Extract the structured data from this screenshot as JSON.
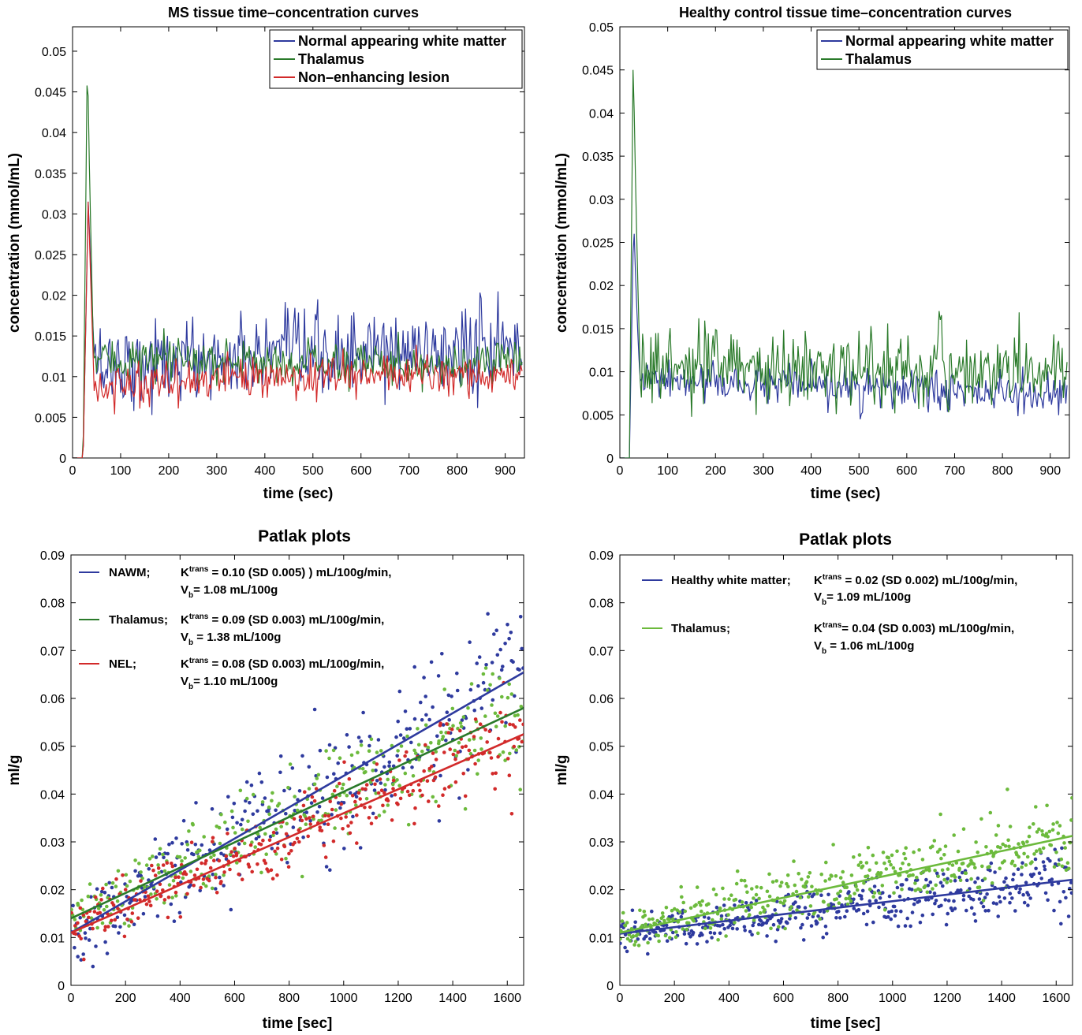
{
  "colors": {
    "blue": "#2e3a9e",
    "green": "#2a7a2a",
    "red": "#d22a2a",
    "lightgreen": "#6cba3c",
    "axis": "#000000"
  },
  "chart_data": [
    {
      "id": "tc1",
      "type": "line",
      "title": "MS tissue time–concentration curves",
      "xlabel": "time (sec)",
      "ylabel": "concentration (mmol/mL)",
      "xlim": [
        0,
        940
      ],
      "ylim": [
        0,
        0.053
      ],
      "xticks": [
        0,
        100,
        200,
        300,
        400,
        500,
        600,
        700,
        800,
        900
      ],
      "yticks": [
        0,
        0.005,
        0.01,
        0.015,
        0.02,
        0.025,
        0.03,
        0.035,
        0.04,
        0.045,
        0.05
      ],
      "ytick_labels": [
        "0",
        "0.005",
        "0.01",
        "0.015",
        "0.02",
        "0.025",
        "0.03",
        "0.035",
        "0.04",
        "0.045",
        "0.05"
      ],
      "grid": false,
      "legend_position": "top-right",
      "series": [
        {
          "name": "Normal appearing white matter",
          "color": "#2e3a9e",
          "profile": {
            "onset": 22,
            "peak_t": 33,
            "peak": 0.033,
            "fall_end": 46,
            "base_start": 0.0115,
            "base_end": 0.0135,
            "noise": 0.0026
          }
        },
        {
          "name": "Thalamus",
          "color": "#2a7a2a",
          "profile": {
            "onset": 22,
            "peak_t": 31,
            "peak": 0.0515,
            "fall_end": 44,
            "base_start": 0.012,
            "base_end": 0.0115,
            "noise": 0.0013
          }
        },
        {
          "name": "Non–enhancing lesion",
          "color": "#d22a2a",
          "profile": {
            "onset": 22,
            "peak_t": 33,
            "peak": 0.033,
            "fall_end": 45,
            "base_start": 0.0092,
            "base_end": 0.0105,
            "noise": 0.0013
          }
        }
      ]
    },
    {
      "id": "tc2",
      "type": "line",
      "title": "Healthy control tissue time–concentration curves",
      "xlabel": "time (sec)",
      "ylabel": "concentration (mmol/mL)",
      "xlim": [
        0,
        940
      ],
      "ylim": [
        0,
        0.05
      ],
      "xticks": [
        0,
        100,
        200,
        300,
        400,
        500,
        600,
        700,
        800,
        900
      ],
      "yticks": [
        0,
        0.005,
        0.01,
        0.015,
        0.02,
        0.025,
        0.03,
        0.035,
        0.04,
        0.045,
        0.05
      ],
      "ytick_labels": [
        "0",
        "0.005",
        "0.01",
        "0.015",
        "0.02",
        "0.025",
        "0.03",
        "0.035",
        "0.04",
        "0.045",
        "0.05"
      ],
      "grid": false,
      "legend_position": "top-right",
      "series": [
        {
          "name": "Normal appearing white matter",
          "color": "#2e3a9e",
          "profile": {
            "onset": 20,
            "peak_t": 29,
            "peak": 0.0285,
            "fall_end": 42,
            "base_start": 0.009,
            "base_end": 0.0072,
            "noise": 0.0011
          }
        },
        {
          "name": "Thalamus",
          "color": "#2a7a2a",
          "profile": {
            "onset": 20,
            "peak_t": 28,
            "peak": 0.048,
            "fall_end": 42,
            "base_start": 0.0105,
            "base_end": 0.01,
            "noise": 0.0021
          }
        }
      ]
    },
    {
      "id": "pk1",
      "type": "scatter",
      "title": "Patlak plots",
      "xlabel": "time [sec]",
      "ylabel": "ml/g",
      "xlim": [
        0,
        1660
      ],
      "ylim": [
        0,
        0.09
      ],
      "xticks": [
        0,
        200,
        400,
        600,
        800,
        1000,
        1200,
        1400,
        1600
      ],
      "yticks": [
        0,
        0.01,
        0.02,
        0.03,
        0.04,
        0.05,
        0.06,
        0.07,
        0.08,
        0.09
      ],
      "ytick_labels": [
        "0",
        "0.01",
        "0.02",
        "0.03",
        "0.04",
        "0.05",
        "0.06",
        "0.07",
        "0.08",
        "0.09"
      ],
      "grid": false,
      "legend_position": "top-left",
      "series": [
        {
          "name": "NAWM;",
          "line1": "K",
          "sup": "trans",
          "line1b": " = 0.10 (SD 0.005) ) mL/100g/min,",
          "line2": "V",
          "sub": "b",
          "line2b": "= 1.08 mL/100g",
          "color": "#2e3a9e",
          "marker_color": "#2e3a9e",
          "fit": {
            "intercept": 0.011,
            "slope": 3.28e-05
          },
          "noise": 0.0068,
          "count": 320
        },
        {
          "name": "Thalamus;",
          "line1": "K",
          "sup": "trans",
          "line1b": " = 0.09 (SD 0.003) mL/100g/min,",
          "line2": "V",
          "sub": "b",
          "line2b": " = 1.38 mL/100g",
          "color": "#2a7a2a",
          "marker_color": "#6cba3c",
          "fit": {
            "intercept": 0.014,
            "slope": 2.65e-05
          },
          "noise": 0.0052,
          "count": 320
        },
        {
          "name": "NEL;",
          "line1": "K",
          "sup": "trans",
          "line1b": " = 0.08 (SD 0.003) mL/100g/min,",
          "line2": "V",
          "sub": "b",
          "line2b": "= 1.10 mL/100g",
          "color": "#d22a2a",
          "marker_color": "#d22a2a",
          "fit": {
            "intercept": 0.011,
            "slope": 2.5e-05
          },
          "noise": 0.0042,
          "count": 320
        }
      ]
    },
    {
      "id": "pk2",
      "type": "scatter",
      "title": "Patlak plots",
      "xlabel": "time [sec]",
      "ylabel": "ml/g",
      "xlim": [
        0,
        1660
      ],
      "ylim": [
        0,
        0.09
      ],
      "xticks": [
        0,
        200,
        400,
        600,
        800,
        1000,
        1200,
        1400,
        1600
      ],
      "yticks": [
        0,
        0.01,
        0.02,
        0.03,
        0.04,
        0.05,
        0.06,
        0.07,
        0.08,
        0.09
      ],
      "ytick_labels": [
        "0",
        "0.01",
        "0.02",
        "0.03",
        "0.04",
        "0.05",
        "0.06",
        "0.07",
        "0.08",
        "0.09"
      ],
      "grid": false,
      "legend_position": "top-left",
      "series": [
        {
          "name": "Healthy white matter;",
          "line1": "K",
          "sup": "trans",
          "line1b": " = 0.02 (SD 0.002) mL/100g/min,",
          "line2": "V",
          "sub": "b",
          "line2b": "= 1.09 mL/100g",
          "color": "#2e3a9e",
          "marker_color": "#2e3a9e",
          "fit": {
            "intercept": 0.0108,
            "slope": 6.8e-06
          },
          "noise": 0.0028,
          "count": 420
        },
        {
          "name": "Thalamus;",
          "line1": "K",
          "sup": "trans",
          "line1b": "= 0.04 (SD 0.003) mL/100g/min,",
          "line2": "V",
          "sub": "b",
          "line2b": " = 1.06 mL/100g",
          "color": "#6cba3c",
          "marker_color": "#6cba3c",
          "fit": {
            "intercept": 0.011,
            "slope": 1.22e-05
          },
          "noise": 0.0038,
          "count": 420
        }
      ]
    }
  ]
}
